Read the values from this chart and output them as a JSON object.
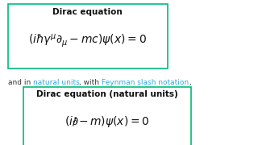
{
  "bg_color": "#ffffff",
  "box1_color": "#00bb77",
  "box1_title": "Dirac equation",
  "box2_title": "Dirac equation (natural units)",
  "title_fontsize": 7.5,
  "eq_fontsize": 10,
  "mid_fontsize": 6.5,
  "box1_eq": "$(i\\hbar\\gamma^{\\mu}\\partial_{\\mu} - mc)\\psi(x) = 0$",
  "box2_eq": "$(i\\partial\\!\\!\\!/ - m)\\psi(x) = 0$",
  "middle_text_parts": [
    {
      "text": "and in ",
      "color": "#333333"
    },
    {
      "text": "natural units",
      "color": "#33aadd"
    },
    {
      "text": ", with ",
      "color": "#333333"
    },
    {
      "text": "Feynman slash notation",
      "color": "#33aadd"
    },
    {
      "text": ",",
      "color": "#333333"
    }
  ]
}
